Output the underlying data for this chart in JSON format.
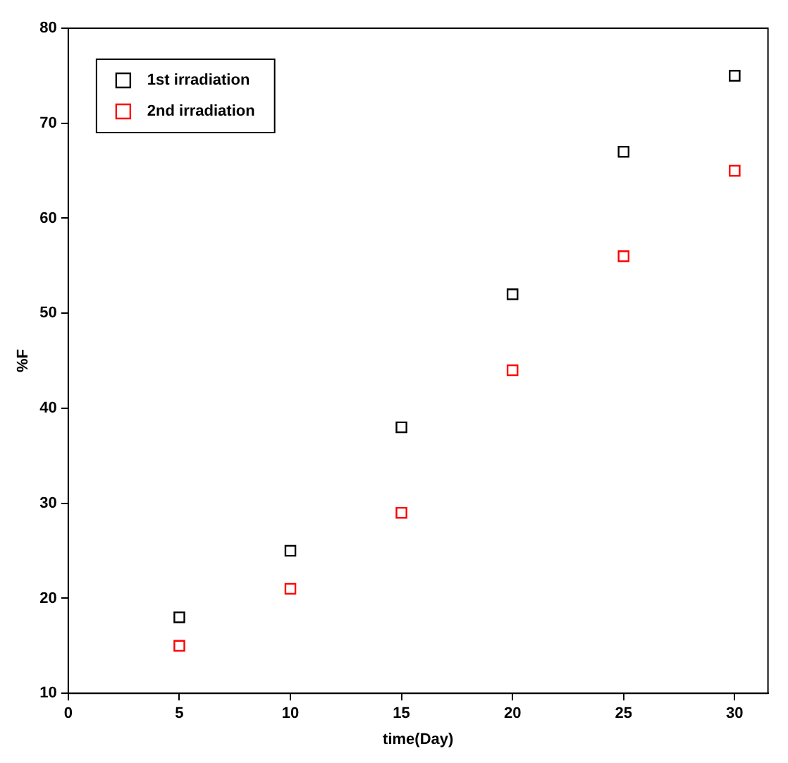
{
  "chart_data": {
    "type": "scatter",
    "xlabel": "time(Day)",
    "ylabel": "%F",
    "x": [
      5,
      10,
      15,
      20,
      25,
      30
    ],
    "series": [
      {
        "name": "1st irradiation",
        "color": "#000000",
        "values": [
          18,
          25,
          38,
          52,
          67,
          75
        ]
      },
      {
        "name": "2nd irradiation",
        "color": "#ff0000",
        "values": [
          15,
          21,
          29,
          44,
          56,
          65
        ]
      }
    ],
    "xlim": [
      0,
      31.5
    ],
    "xticks": [
      0,
      5,
      10,
      15,
      20,
      25,
      30
    ],
    "ylim": [
      10,
      80
    ],
    "yticks": [
      10,
      20,
      30,
      40,
      50,
      60,
      70,
      80
    ],
    "marker": "square",
    "legend": "top left",
    "grid": false
  }
}
